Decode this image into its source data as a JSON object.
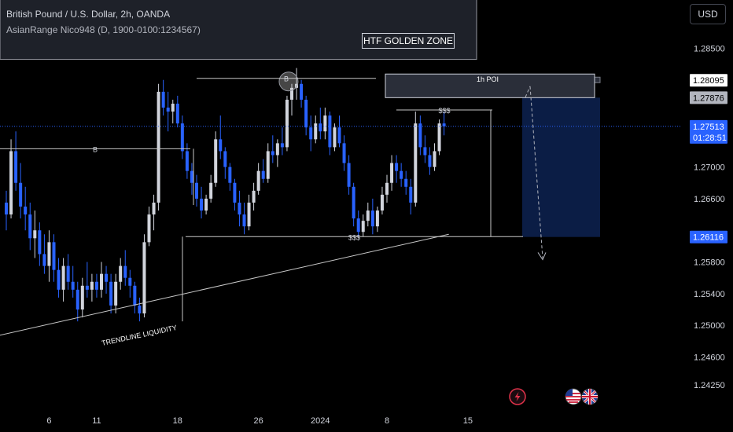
{
  "header": {
    "title": "British Pound / U.S. Dollar, 2h, OANDA",
    "indicator": "AsianRange Nico948 (D, 1900-0100:1234567)"
  },
  "toolbar": {
    "currency": "USD"
  },
  "annotations": {
    "htf_golden_zone": "HTF GOLDEN ZONE",
    "poi": "1h POI",
    "b_upper": "B",
    "b_lower": "B",
    "liquidity_upper": "$$$",
    "liquidity_lower": "$$$",
    "trendline": "TRENDLINE LIQUIDITY"
  },
  "colors": {
    "background": "#000000",
    "up_candle": "#d1d4dc",
    "down_candle": "#2962ff",
    "price_line": "#2962ff",
    "short_zone": "#0b1d45",
    "zone_box": "#1e2129",
    "line": "#c8c8c8"
  },
  "icons": [
    "lightning-event-icon",
    "us-flag-icon",
    "uk-flag-icon"
  ],
  "chart_data": {
    "type": "candlestick",
    "symbol": "GBPUSD",
    "timeframe": "2h",
    "ylim": [
      1.2395,
      1.2905
    ],
    "y_ticks": [
      "1.28500",
      "1.27000",
      "1.26600",
      "1.25800",
      "1.25400",
      "1.25000",
      "1.24600",
      "1.24250"
    ],
    "y_tick_values": [
      1.285,
      1.27,
      1.266,
      1.258,
      1.254,
      1.25,
      1.246,
      1.2425
    ],
    "x_ticks": [
      "6",
      "11",
      "18",
      "26",
      "2024",
      "8",
      "15"
    ],
    "x_tick_index": [
      9,
      19,
      36,
      53,
      66,
      80,
      97
    ],
    "x_count": 112,
    "price_labels": [
      {
        "text": "1.28095",
        "value": 1.28095,
        "style": "white"
      },
      {
        "text": "1.27876",
        "value": 1.27876,
        "style": "gray"
      },
      {
        "text": "1.27513",
        "value": 1.27513,
        "style": "blue",
        "subtext": "01:28:51"
      },
      {
        "text": "1.26116",
        "value": 1.26116,
        "style": "blue"
      }
    ],
    "current_price": 1.27513,
    "candles": [
      [
        1.2655,
        1.267,
        1.262,
        1.264
      ],
      [
        1.264,
        1.2735,
        1.2635,
        1.272
      ],
      [
        1.272,
        1.2745,
        1.267,
        1.268
      ],
      [
        1.268,
        1.2705,
        1.2635,
        1.265
      ],
      [
        1.265,
        1.2675,
        1.262,
        1.264
      ],
      [
        1.264,
        1.2655,
        1.2595,
        1.261
      ],
      [
        1.261,
        1.2645,
        1.2585,
        1.262
      ],
      [
        1.262,
        1.263,
        1.2575,
        1.259
      ],
      [
        1.259,
        1.2615,
        1.2565,
        1.2575
      ],
      [
        1.2575,
        1.262,
        1.2555,
        1.2605
      ],
      [
        1.2605,
        1.2615,
        1.2555,
        1.257
      ],
      [
        1.257,
        1.2585,
        1.2535,
        1.2545
      ],
      [
        1.2545,
        1.2585,
        1.253,
        1.2575
      ],
      [
        1.2575,
        1.259,
        1.2545,
        1.2555
      ],
      [
        1.2555,
        1.2575,
        1.2535,
        1.2545
      ],
      [
        1.2545,
        1.2555,
        1.2505,
        1.252
      ],
      [
        1.252,
        1.256,
        1.251,
        1.255
      ],
      [
        1.255,
        1.258,
        1.2535,
        1.2545
      ],
      [
        1.2545,
        1.2565,
        1.253,
        1.2555
      ],
      [
        1.2555,
        1.2565,
        1.2535,
        1.2545
      ],
      [
        1.2545,
        1.258,
        1.2535,
        1.2565
      ],
      [
        1.2565,
        1.2575,
        1.254,
        1.2555
      ],
      [
        1.2555,
        1.2565,
        1.2515,
        1.2525
      ],
      [
        1.2525,
        1.2565,
        1.2515,
        1.2555
      ],
      [
        1.2555,
        1.2585,
        1.2545,
        1.2575
      ],
      [
        1.2575,
        1.2595,
        1.255,
        1.256
      ],
      [
        1.256,
        1.257,
        1.2535,
        1.255
      ],
      [
        1.255,
        1.2555,
        1.2515,
        1.2525
      ],
      [
        1.2525,
        1.2535,
        1.2505,
        1.2515
      ],
      [
        1.2515,
        1.2615,
        1.251,
        1.2605
      ],
      [
        1.2605,
        1.265,
        1.26,
        1.264
      ],
      [
        1.264,
        1.2665,
        1.262,
        1.2655
      ],
      [
        1.2655,
        1.2805,
        1.2645,
        1.2795
      ],
      [
        1.2795,
        1.281,
        1.2765,
        1.2775
      ],
      [
        1.2775,
        1.2795,
        1.2745,
        1.277
      ],
      [
        1.277,
        1.2785,
        1.2755,
        1.278
      ],
      [
        1.278,
        1.279,
        1.275,
        1.2755
      ],
      [
        1.2755,
        1.2765,
        1.271,
        1.272
      ],
      [
        1.272,
        1.273,
        1.2685,
        1.2695
      ],
      [
        1.2695,
        1.2705,
        1.2665,
        1.268
      ],
      [
        1.268,
        1.269,
        1.265,
        1.266
      ],
      [
        1.266,
        1.2675,
        1.2635,
        1.2645
      ],
      [
        1.2645,
        1.2665,
        1.264,
        1.266
      ],
      [
        1.266,
        1.269,
        1.2655,
        1.268
      ],
      [
        1.268,
        1.2745,
        1.2675,
        1.2735
      ],
      [
        1.2735,
        1.2765,
        1.271,
        1.272
      ],
      [
        1.272,
        1.2725,
        1.2685,
        1.27
      ],
      [
        1.27,
        1.2705,
        1.267,
        1.268
      ],
      [
        1.268,
        1.2685,
        1.2645,
        1.2655
      ],
      [
        1.2655,
        1.267,
        1.2625,
        1.264
      ],
      [
        1.264,
        1.2655,
        1.2615,
        1.2625
      ],
      [
        1.2625,
        1.2665,
        1.262,
        1.2655
      ],
      [
        1.2655,
        1.268,
        1.2645,
        1.267
      ],
      [
        1.267,
        1.2705,
        1.2665,
        1.2695
      ],
      [
        1.2695,
        1.271,
        1.268,
        1.2685
      ],
      [
        1.2685,
        1.273,
        1.268,
        1.272
      ],
      [
        1.272,
        1.274,
        1.2705,
        1.2715
      ],
      [
        1.2715,
        1.2735,
        1.27,
        1.273
      ],
      [
        1.273,
        1.275,
        1.2715,
        1.2725
      ],
      [
        1.2725,
        1.279,
        1.272,
        1.2785
      ],
      [
        1.2785,
        1.2805,
        1.2765,
        1.28
      ],
      [
        1.28,
        1.2825,
        1.2785,
        1.2805
      ],
      [
        1.2805,
        1.281,
        1.2775,
        1.2785
      ],
      [
        1.2785,
        1.279,
        1.274,
        1.275
      ],
      [
        1.275,
        1.2765,
        1.272,
        1.2735
      ],
      [
        1.2735,
        1.2765,
        1.273,
        1.2755
      ],
      [
        1.2755,
        1.2775,
        1.2735,
        1.2745
      ],
      [
        1.2745,
        1.2775,
        1.2735,
        1.2765
      ],
      [
        1.2765,
        1.277,
        1.2715,
        1.2725
      ],
      [
        1.2725,
        1.2755,
        1.272,
        1.275
      ],
      [
        1.275,
        1.2765,
        1.2725,
        1.273
      ],
      [
        1.273,
        1.274,
        1.2695,
        1.2705
      ],
      [
        1.2705,
        1.2715,
        1.2665,
        1.2675
      ],
      [
        1.2675,
        1.268,
        1.2625,
        1.2635
      ],
      [
        1.2635,
        1.2645,
        1.2612,
        1.2618
      ],
      [
        1.2618,
        1.264,
        1.2612,
        1.2632
      ],
      [
        1.2632,
        1.2655,
        1.2625,
        1.2645
      ],
      [
        1.2645,
        1.266,
        1.2615,
        1.2625
      ],
      [
        1.2625,
        1.265,
        1.2618,
        1.2645
      ],
      [
        1.2645,
        1.2675,
        1.264,
        1.2665
      ],
      [
        1.2665,
        1.269,
        1.2655,
        1.268
      ],
      [
        1.268,
        1.2715,
        1.267,
        1.2705
      ],
      [
        1.2705,
        1.2715,
        1.268,
        1.2695
      ],
      [
        1.2695,
        1.2705,
        1.2675,
        1.2685
      ],
      [
        1.2685,
        1.2695,
        1.2665,
        1.2675
      ],
      [
        1.2675,
        1.2685,
        1.264,
        1.2655
      ],
      [
        1.2655,
        1.277,
        1.265,
        1.2755
      ],
      [
        1.2755,
        1.2765,
        1.2715,
        1.2725
      ],
      [
        1.2725,
        1.274,
        1.2705,
        1.2715
      ],
      [
        1.2715,
        1.2725,
        1.269,
        1.27
      ],
      [
        1.27,
        1.273,
        1.2695,
        1.272
      ],
      [
        1.272,
        1.276,
        1.2715,
        1.2755
      ],
      [
        1.2755,
        1.277,
        1.274,
        1.27513
      ]
    ],
    "annotation_values": {
      "htf_zone": [
        1.2922,
        1.2836
      ],
      "poi_zone": [
        1.28095,
        1.27876
      ],
      "upper_b_level": 1.2812,
      "lower_b_level": 1.2723,
      "upper_liquidity_level": 1.2772,
      "lower_liquidity_level": 1.2612,
      "short_entry": 1.27876,
      "short_target": 1.26116,
      "trendline": [
        [
          -18,
          1.2465
        ],
        [
          93,
          1.2615
        ]
      ]
    }
  }
}
